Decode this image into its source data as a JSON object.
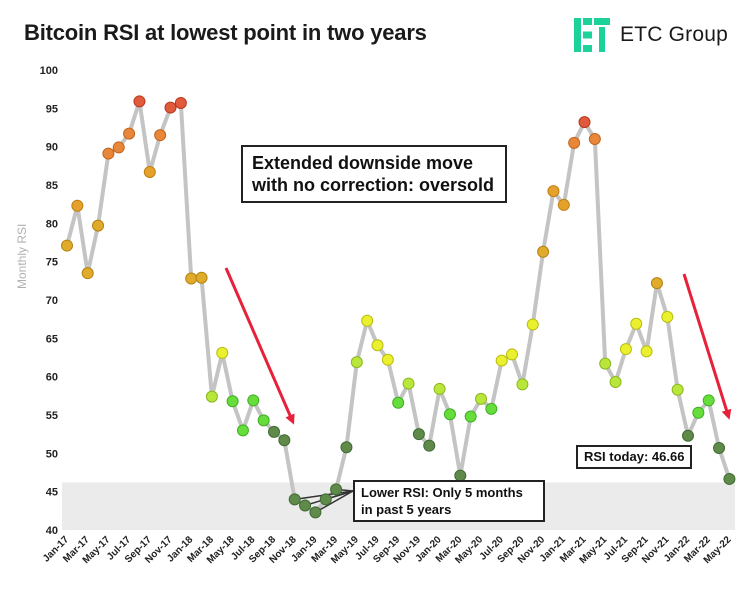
{
  "header": {
    "title": "Bitcoin RSI at lowest point in two years"
  },
  "logo": {
    "text": "ETC Group",
    "icon": "etc-group-logo-icon",
    "color": "#1bd39a"
  },
  "chart_data": {
    "type": "line",
    "title": "Bitcoin RSI at lowest point in two years",
    "xlabel": "",
    "ylabel": "Monthly RSI",
    "ylim": [
      40,
      100
    ],
    "yticks": [
      40,
      45,
      50,
      55,
      60,
      65,
      70,
      75,
      80,
      85,
      90,
      95,
      100
    ],
    "grid": false,
    "x": [
      "Jan-17",
      "Feb-17",
      "Mar-17",
      "Apr-17",
      "May-17",
      "Jun-17",
      "Jul-17",
      "Aug-17",
      "Sep-17",
      "Oct-17",
      "Nov-17",
      "Dec-17",
      "Jan-18",
      "Feb-18",
      "Mar-18",
      "Apr-18",
      "May-18",
      "Jun-18",
      "Jul-18",
      "Aug-18",
      "Sep-18",
      "Oct-18",
      "Nov-18",
      "Dec-18",
      "Jan-19",
      "Feb-19",
      "Mar-19",
      "Apr-19",
      "May-19",
      "Jun-19",
      "Jul-19",
      "Aug-19",
      "Sep-19",
      "Oct-19",
      "Nov-19",
      "Dec-19",
      "Jan-20",
      "Feb-20",
      "Mar-20",
      "Apr-20",
      "May-20",
      "Jun-20",
      "Jul-20",
      "Aug-20",
      "Sep-20",
      "Oct-20",
      "Nov-20",
      "Dec-20",
      "Jan-21",
      "Feb-21",
      "Mar-21",
      "Apr-21",
      "May-21",
      "Jun-21",
      "Jul-21",
      "Aug-21",
      "Sep-21",
      "Oct-21",
      "Nov-21",
      "Dec-21",
      "Jan-22",
      "Feb-22",
      "Mar-22",
      "Apr-22",
      "May-22"
    ],
    "xtick_labels": [
      "Jan-17",
      "Mar-17",
      "May-17",
      "Jul-17",
      "Sep-17",
      "Nov-17",
      "Jan-18",
      "Mar-18",
      "May-18",
      "Jul-18",
      "Sep-18",
      "Nov-18",
      "Jan-19",
      "Mar-19",
      "May-19",
      "Jul-19",
      "Sep-19",
      "Nov-19",
      "Jan-20",
      "Mar-20",
      "May-20",
      "Jul-20",
      "Sep-20",
      "Nov-20",
      "Jan-21",
      "Mar-21",
      "May-21",
      "Jul-21",
      "Sep-21",
      "Nov-21",
      "Jan-22",
      "Mar-22",
      "May-22"
    ],
    "series": [
      {
        "name": "Monthly RSI",
        "line_color": "#c4c4c4",
        "values": [
          77.1,
          82.3,
          73.5,
          79.7,
          89.1,
          89.9,
          91.7,
          95.9,
          86.7,
          91.5,
          95.1,
          95.7,
          72.8,
          72.9,
          57.4,
          63.1,
          56.8,
          53.0,
          56.9,
          54.3,
          52.8,
          51.7,
          44.0,
          43.2,
          42.3,
          44.0,
          45.3,
          50.8,
          61.9,
          67.3,
          64.1,
          62.2,
          56.6,
          59.1,
          52.5,
          51.0,
          58.4,
          55.1,
          47.1,
          54.8,
          57.1,
          55.8,
          62.1,
          62.9,
          59.0,
          66.8,
          76.3,
          84.2,
          82.4,
          90.5,
          93.2,
          91.0,
          61.7,
          59.3,
          63.6,
          66.9,
          63.3,
          72.2,
          67.8,
          58.3,
          52.3,
          55.3,
          56.9,
          50.7,
          46.66
        ]
      }
    ],
    "oversold_band": [
      40,
      46.2
    ],
    "annotations": [
      "Extended downside move with no correction: oversold",
      "Lower RSI: Only 5 months in past 5 years",
      "RSI today: 46.66"
    ],
    "colors": {
      "arrow": "#e8213a",
      "band": "#ebebeb"
    }
  }
}
